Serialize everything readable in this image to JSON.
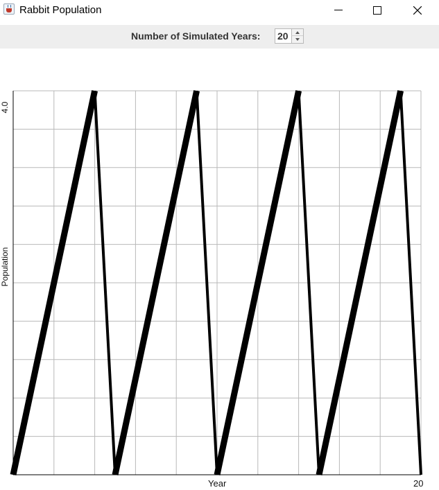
{
  "window": {
    "title": "Rabbit Population"
  },
  "toolbar": {
    "years_label": "Number of Simulated Years:",
    "years_value": "20"
  },
  "chart_data": {
    "type": "line",
    "xlabel": "Year",
    "ylabel": "Population",
    "xlim": [
      0,
      20
    ],
    "ylim": [
      0,
      4.0
    ],
    "x_ticks_labeled": [
      "20"
    ],
    "y_ticks_labeled": [
      "4.0"
    ],
    "grid": true,
    "series": [
      {
        "x": [
          0,
          4,
          5,
          9,
          10,
          14,
          15,
          19,
          20
        ],
        "y": [
          0,
          4,
          0,
          4,
          0,
          4,
          0,
          4,
          0
        ],
        "widths": [
          9,
          4,
          9,
          4,
          9,
          4,
          9,
          4
        ]
      }
    ]
  }
}
